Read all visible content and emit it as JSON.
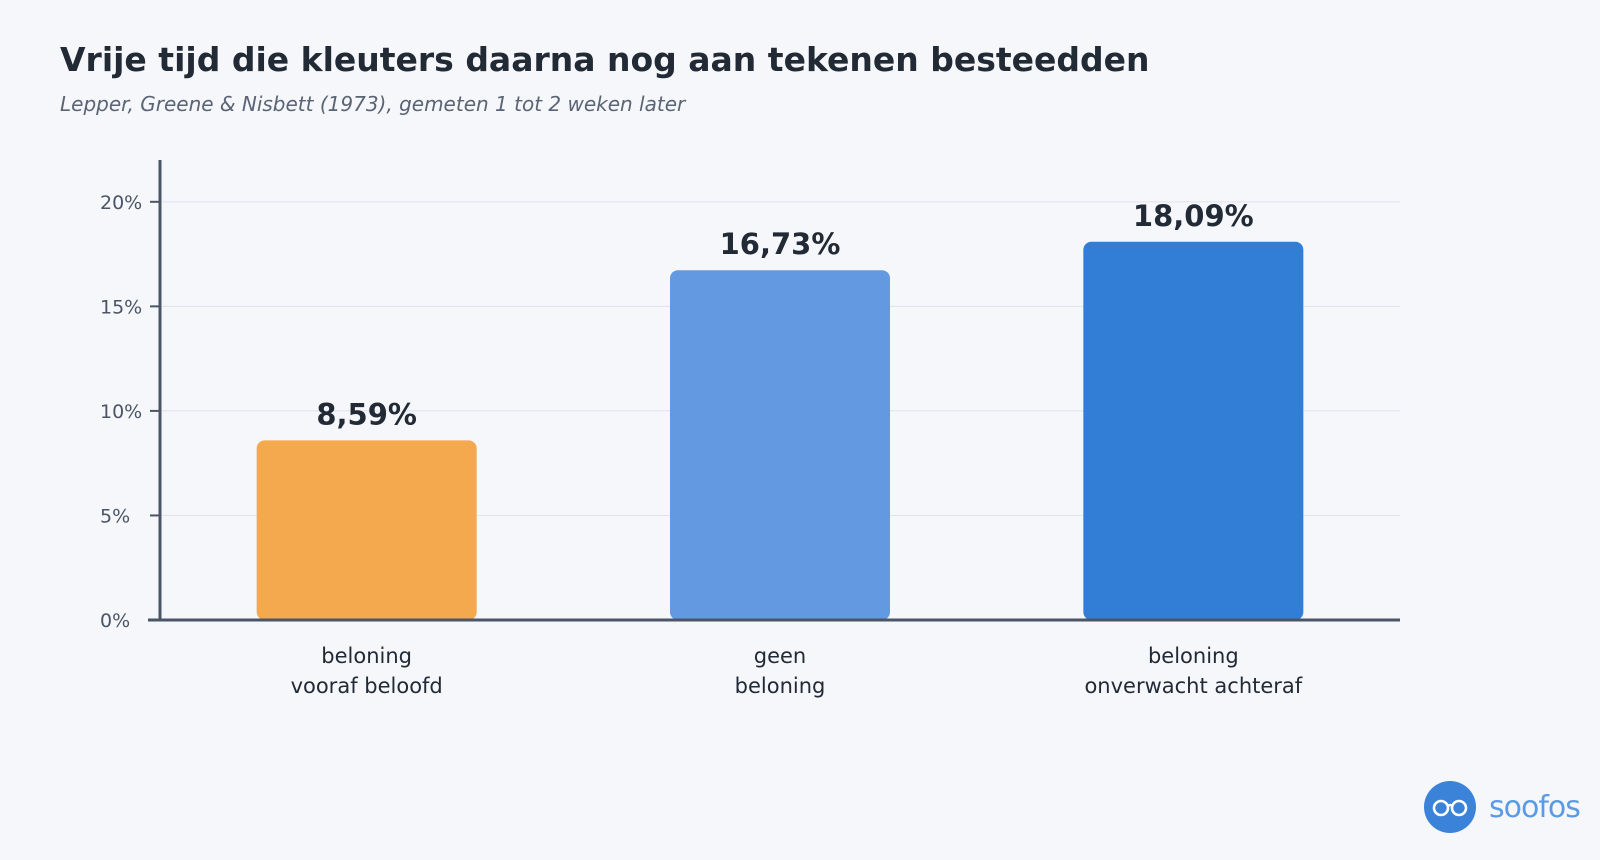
{
  "chart_data": {
    "type": "bar",
    "title": "Vrije tijd die kleuters daarna nog aan tekenen besteedden",
    "subtitle": "Lepper, Greene & Nisbett (1973), gemeten 1 tot 2 weken later",
    "categories": [
      [
        "beloning",
        "vooraf beloofd"
      ],
      [
        "geen",
        "beloning"
      ],
      [
        "beloning",
        "onverwacht achteraf"
      ]
    ],
    "values": [
      8.59,
      16.73,
      18.09
    ],
    "value_labels": [
      "8,59%",
      "16,73%",
      "18,09%"
    ],
    "colors": [
      "#f4a94e",
      "#6399e0",
      "#327ed7"
    ],
    "ylim": [
      0,
      22
    ],
    "yticks": [
      0,
      5,
      10,
      15,
      20
    ],
    "ytick_labels": [
      "0%",
      "5%",
      "10%",
      "15%",
      "20%"
    ],
    "grid": true,
    "xlabel": "",
    "ylabel": ""
  },
  "brand": {
    "name": "soofos"
  }
}
